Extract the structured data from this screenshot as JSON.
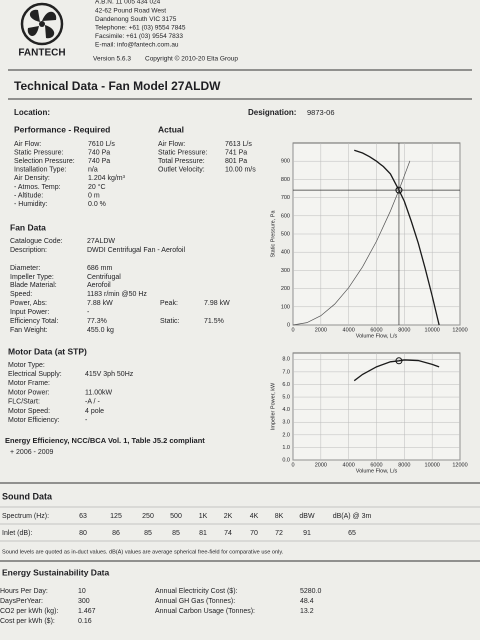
{
  "header": {
    "lines": [
      "A.B.N. 11 005 434 024",
      "42-62 Pound Road West",
      "Dandenong South VIC 3175",
      "Telephone: +61 (03) 9554 7845",
      "Facsimile: +61 (03) 9554 7833",
      "E-mail: info@fantech.com.au"
    ],
    "version": "Version 5.6.3",
    "copyright": "Copyright © 2010-20 Elta Group",
    "logo": "FANTECH"
  },
  "title": "Technical Data - Fan Model 27ALDW",
  "location": "Location:",
  "designation": {
    "label": "Designation:",
    "value": "9873-06"
  },
  "performance_required": {
    "heading": "Performance - Required",
    "rows": [
      [
        "Air Flow:",
        "7610 L/s"
      ],
      [
        "Static Pressure:",
        "740 Pa"
      ],
      [
        "Selection Pressure:",
        "740 Pa"
      ],
      [
        "Installation Type:",
        "n/a"
      ],
      [
        "Air Density:",
        "1.204 kg/m³"
      ],
      [
        "- Atmos. Temp:",
        "20 °C"
      ],
      [
        "- Altitude:",
        "0 m"
      ],
      [
        "- Humidity:",
        "0.0 %"
      ]
    ]
  },
  "actual": {
    "heading": "Actual",
    "rows": [
      [
        "Air Flow:",
        "7613 L/s"
      ],
      [
        "Static Pressure:",
        "741 Pa"
      ],
      [
        "Total Pressure:",
        "801 Pa"
      ],
      [
        "Outlet Velocity:",
        "10.00 m/s"
      ]
    ]
  },
  "fan_data": {
    "heading": "Fan Data",
    "rows": [
      [
        "Catalogue Code:",
        "27ALDW"
      ],
      [
        "Description:",
        "DWDI Centrifugal Fan - Aerofoil"
      ],
      [
        "Diameter:",
        "686 mm"
      ],
      [
        "Impeller Type:",
        "Centrifugal"
      ],
      [
        "Blade Material:",
        "Aerofoil"
      ],
      [
        "Speed:",
        "1183 r/min @50 Hz"
      ],
      [
        "Power, Abs:",
        "7.88 kW",
        "Peak:",
        "7.98 kW"
      ],
      [
        "Input Power:",
        "-"
      ],
      [
        "Efficiency Total:",
        "77.3%",
        "Static:",
        "71.5%"
      ],
      [
        "Fan Weight:",
        "455.0 kg"
      ]
    ]
  },
  "motor_data": {
    "heading": "Motor Data (at STP)",
    "rows": [
      [
        "Motor Type:"
      ],
      [
        "Electrical Supply:",
        "415V 3ph 50Hz"
      ],
      [
        "Motor Frame:"
      ],
      [
        "Motor Power:",
        "11.00kW"
      ],
      [
        "FLC/Start:",
        "-A / -"
      ],
      [
        "Motor Speed:",
        "4 pole"
      ],
      [
        "Motor Efficiency:",
        "-"
      ]
    ]
  },
  "energy_efficiency": {
    "text": "Energy Efficiency, NCC/BCA Vol. 1, Table J5.2 compliant",
    "years": "+ 2006 - 2009"
  },
  "charts": [
    {
      "type": "line",
      "ylabel": "Static Pressure, Pa",
      "xlabel": "Volume Flow, L/s",
      "xlim": [
        0,
        12000
      ],
      "ylim": [
        0,
        1000
      ],
      "xticks": [
        0,
        2000,
        4000,
        6000,
        8000,
        10000,
        12000
      ],
      "yticks": [
        0,
        100,
        200,
        300,
        400,
        500,
        600,
        700,
        800,
        900
      ],
      "grid": true,
      "crosshair": true,
      "series": [
        {
          "color": "#1a1a1a",
          "x": [
            4400,
            5000,
            5500,
            6000,
            6500,
            7000,
            7613,
            8000,
            8500,
            9000,
            9500,
            10000,
            10500
          ],
          "values": [
            960,
            945,
            925,
            900,
            870,
            830,
            741,
            680,
            570,
            450,
            310,
            160,
            0
          ]
        },
        {
          "color": "#555555",
          "x": [
            0,
            1000,
            2000,
            3000,
            4000,
            5000,
            6000,
            7000,
            7613,
            8400
          ],
          "values": [
            0,
            13,
            51,
            115,
            205,
            320,
            460,
            626,
            741,
            902
          ]
        }
      ],
      "point": {
        "x": 7613,
        "y": 741
      }
    },
    {
      "type": "line",
      "ylabel": "Impeller Power, kW",
      "xlabel": "Volume Flow, L/s",
      "xlim": [
        0,
        12000
      ],
      "ylim": [
        0,
        8.5
      ],
      "xticks": [
        0,
        2000,
        4000,
        6000,
        8000,
        10000,
        12000
      ],
      "yticks": [
        {
          "value": 0,
          "label": "0.0"
        },
        {
          "value": 1,
          "label": "1.0"
        },
        {
          "value": 2,
          "label": "2.0"
        },
        {
          "value": 3,
          "label": "3.0"
        },
        {
          "value": 4,
          "label": "4.0"
        },
        {
          "value": 5,
          "label": "5.0"
        },
        {
          "value": 6,
          "label": "6.0"
        },
        {
          "value": 7,
          "label": "7.0"
        },
        {
          "value": 8,
          "label": "8.0"
        }
      ],
      "grid": true,
      "crosshair": false,
      "series": [
        {
          "color": "#1a1a1a",
          "x": [
            4400,
            5000,
            6000,
            7000,
            7613,
            8000,
            9000,
            10000,
            10500
          ],
          "values": [
            6.3,
            6.8,
            7.4,
            7.8,
            7.88,
            7.95,
            7.9,
            7.6,
            7.4
          ]
        }
      ],
      "point": {
        "x": 7613,
        "y": 7.88
      }
    }
  ],
  "sound": {
    "heading": "Sound Data",
    "spectrum": {
      "label": "Spectrum (Hz):",
      "values": [
        "63",
        "125",
        "250",
        "500",
        "1K",
        "2K",
        "4K",
        "8K",
        "dBW",
        "dB(A) @ 3m"
      ]
    },
    "inlet": {
      "label": "Inlet (dB):",
      "values": [
        80,
        86,
        85,
        85,
        81,
        74,
        70,
        72,
        91,
        65
      ]
    },
    "note": "Sound levels are quoted as in-duct values. dB(A) values are average spherical free-field for comparative use only."
  },
  "energy_sustainability": {
    "heading": "Energy Sustainability Data",
    "left": [
      [
        "Hours Per Day:",
        "10"
      ],
      [
        "DaysPerYear:",
        "300"
      ],
      [
        "CO2 per kWh (kg):",
        "1.467"
      ],
      [
        "Cost per kWh ($):",
        "0.16"
      ]
    ],
    "right": [
      [
        "Annual Electricity Cost ($):",
        "5280.0"
      ],
      [
        "Annual GH Gas (Tonnes):",
        "48.4"
      ],
      [
        "Annual Carbon Usage (Tonnes):",
        "13.2"
      ]
    ]
  }
}
